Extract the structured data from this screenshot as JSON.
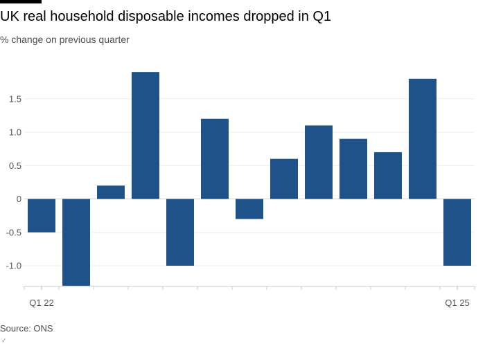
{
  "chart_data": {
    "type": "bar",
    "title": "UK real household disposable incomes dropped in Q1",
    "subtitle": "% change on previous quarter",
    "source": "Source: ONS",
    "values": [
      -0.5,
      -1.3,
      0.2,
      1.9,
      -1.0,
      1.2,
      -0.3,
      0.6,
      1.1,
      0.9,
      0.7,
      1.8,
      -1.0
    ],
    "x_tick_labels": [
      "Q1 22",
      "Q1 25"
    ],
    "x_tick_label_indices": [
      0,
      12
    ],
    "y_ticks": [
      -1.0,
      -0.5,
      0,
      0.5,
      1.0,
      1.5
    ],
    "y_tick_labels": [
      "-1.0",
      "-0.5",
      "0",
      "0.5",
      "1.0",
      "1.5"
    ],
    "ylim": [
      -1.3,
      1.9
    ],
    "grid": true,
    "bar_color": "#1f5289"
  }
}
